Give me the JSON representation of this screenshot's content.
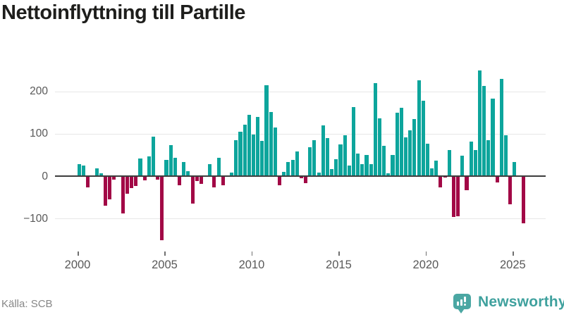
{
  "title": "Nettoinflyttning till Partille",
  "source": "Källa: SCB",
  "logo": {
    "text": "Newsworthy"
  },
  "colors": {
    "positive": "#0da59c",
    "negative": "#a20846",
    "zero_line": "#3d3d3d",
    "gridline": "#e7e7e7",
    "axis_text": "#595959",
    "brand": "#4ba7a3"
  },
  "chart_data": {
    "type": "bar",
    "title": "Nettoinflyttning till Partille",
    "subtitle": "",
    "xlabel": "",
    "ylabel": "",
    "frequency": "quarterly",
    "start": "2000Q1",
    "end": "2025Q3",
    "values": [
      28,
      25,
      -26,
      0,
      19,
      6,
      -70,
      -55,
      -8,
      0,
      -88,
      -42,
      -28,
      -23,
      42,
      -10,
      46,
      93,
      -9,
      -152,
      39,
      73,
      43,
      -21,
      33,
      12,
      -65,
      -11,
      -19,
      0,
      29,
      -27,
      43,
      -22,
      2,
      8,
      84,
      105,
      122,
      145,
      98,
      139,
      83,
      214,
      152,
      115,
      -22,
      10,
      34,
      38,
      58,
      -5,
      -17,
      68,
      85,
      8,
      119,
      90,
      17,
      40,
      75,
      97,
      25,
      163,
      53,
      28,
      50,
      29,
      220,
      137,
      72,
      6,
      50,
      150,
      162,
      91,
      108,
      134,
      226,
      177,
      76,
      19,
      37,
      -27,
      -4,
      61,
      -97,
      -94,
      48,
      -34,
      82,
      61,
      250,
      213,
      84,
      182,
      -15,
      229,
      97,
      -66,
      34,
      0,
      -112
    ],
    "x_ticks": [
      2000,
      2005,
      2010,
      2015,
      2020,
      2025
    ],
    "y_ticks": [
      -100,
      0,
      100,
      200
    ],
    "ylim": [
      -160,
      255
    ],
    "grid": "horizontal",
    "legend": "none",
    "positive_color": "#0da59c",
    "negative_color": "#a20846",
    "source": "Källa: SCB"
  }
}
